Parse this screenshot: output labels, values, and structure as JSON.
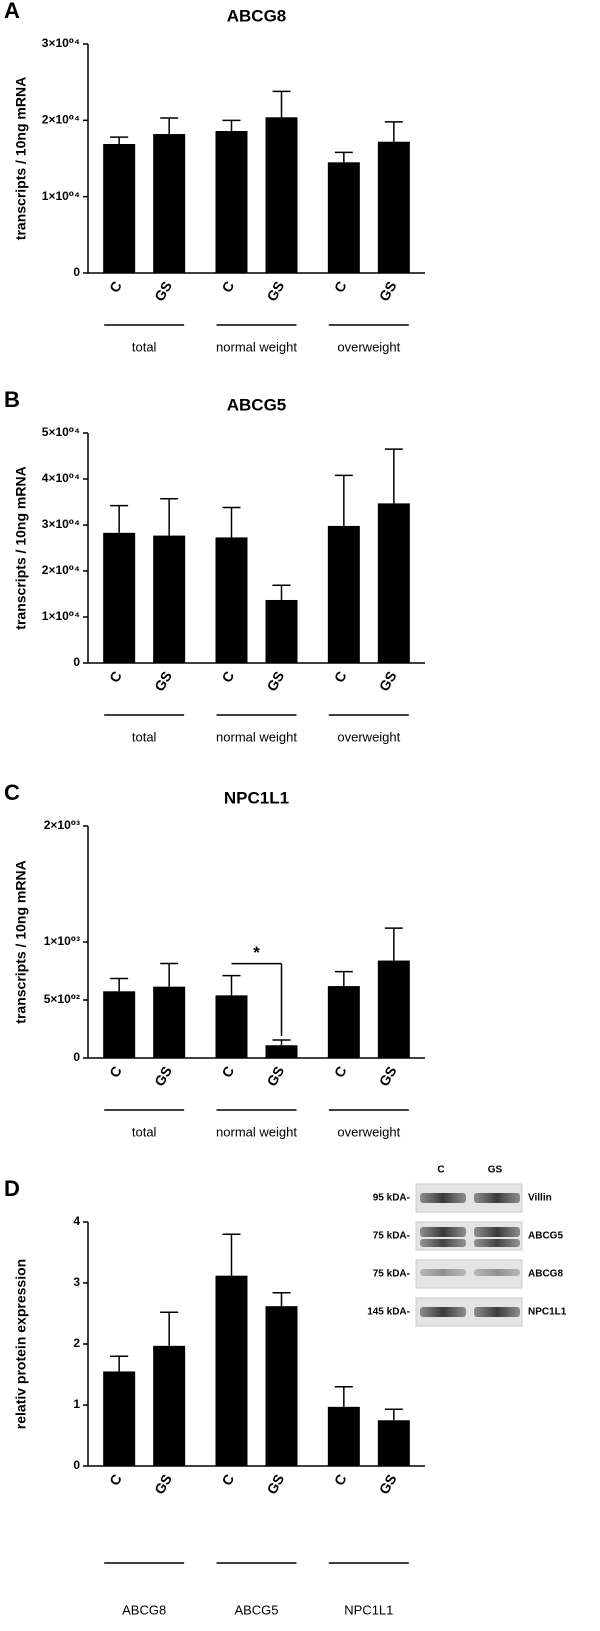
{
  "chart_data": [
    {
      "type": "bar",
      "panel": "A",
      "title": "ABCG8",
      "y_label": "transcripts / 10ng mRNA",
      "categories": [
        "C",
        "GS",
        "C",
        "GS",
        "C",
        "GS"
      ],
      "groups": [
        "total",
        "normal weight",
        "overweight"
      ],
      "values": [
        16900,
        18200,
        18600,
        20400,
        14500,
        17200
      ],
      "errors": [
        900,
        2100,
        1400,
        3400,
        1300,
        2600
      ],
      "color": "#000000",
      "ylim": [
        0,
        30000
      ],
      "yticks": [
        0,
        {
          "value": 10000,
          "label": "1×10⁰⁴"
        },
        {
          "value": 20000,
          "label": "2×10⁰⁴"
        },
        {
          "value": 30000,
          "label": "3×10⁰⁴"
        }
      ]
    },
    {
      "type": "bar",
      "panel": "B",
      "title": "ABCG5",
      "y_label": "transcripts / 10ng mRNA",
      "categories": [
        "C",
        "GS",
        "C",
        "GS",
        "C",
        "GS"
      ],
      "groups": [
        "total",
        "normal weight",
        "overweight"
      ],
      "values": [
        28300,
        27700,
        27300,
        13700,
        29800,
        34700
      ],
      "errors": [
        5900,
        8000,
        6500,
        3200,
        11000,
        11800
      ],
      "color": "#000000",
      "ylim": [
        0,
        50000
      ],
      "yticks": [
        0,
        {
          "value": 10000,
          "label": "1×10⁰⁴"
        },
        {
          "value": 20000,
          "label": "2×10⁰⁴"
        },
        {
          "value": 30000,
          "label": "3×10⁰⁴"
        },
        {
          "value": 40000,
          "label": "4×10⁰⁴"
        },
        {
          "value": 50000,
          "label": "5×10⁰⁴"
        }
      ]
    },
    {
      "type": "bar",
      "panel": "C",
      "title": "NPC1L1",
      "y_label": "transcripts / 10ng mRNA",
      "categories": [
        "C",
        "GS",
        "C",
        "GS",
        "C",
        "GS"
      ],
      "groups": [
        "total",
        "normal weight",
        "overweight"
      ],
      "values": [
        575,
        615,
        540,
        110,
        620,
        840
      ],
      "errors": [
        110,
        200,
        170,
        45,
        125,
        280
      ],
      "annotation": "*",
      "color": "#000000",
      "ylim": [
        0,
        2000
      ],
      "yticks": [
        0,
        {
          "value": 500,
          "label": "5×10⁰²"
        },
        {
          "value": 1000,
          "label": "1×10⁰³"
        },
        {
          "value": 2000,
          "label": "2×10⁰³"
        }
      ]
    },
    {
      "type": "bar",
      "panel": "D",
      "y_label": "relativ protein expression",
      "categories": [
        "C",
        "GS",
        "C",
        "GS",
        "C",
        "GS"
      ],
      "groups": [
        "ABCG8",
        "ABCG5",
        "NPC1L1"
      ],
      "values": [
        1.55,
        1.97,
        3.12,
        2.62,
        0.97,
        0.75
      ],
      "errors": [
        0.25,
        0.55,
        0.68,
        0.22,
        0.33,
        0.18
      ],
      "color": "#000000",
      "ylim": [
        0,
        4
      ],
      "yticks": [
        0,
        1,
        2,
        3,
        4
      ]
    }
  ],
  "blot": {
    "lanes": [
      "C",
      "GS"
    ],
    "rows": [
      {
        "size": "95 kDA-",
        "protein": "Villin"
      },
      {
        "size": "75 kDA-",
        "protein": "ABCG5"
      },
      {
        "size": "75 kDA-",
        "protein": "ABCG8"
      },
      {
        "size": "145 kDA-",
        "protein": "NPC1L1"
      }
    ]
  }
}
